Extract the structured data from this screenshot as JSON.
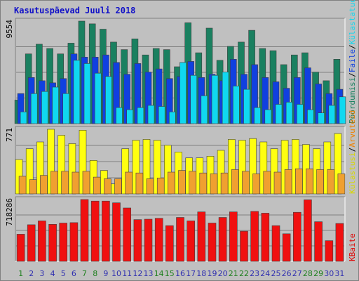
{
  "chart_data": {
    "type": "bar",
    "title": "Kasutuspäevad Juuli 2018",
    "categories": [
      "1",
      "2",
      "3",
      "4",
      "5",
      "6",
      "7",
      "8",
      "9",
      "10",
      "11",
      "12",
      "13",
      "14",
      "15",
      "16",
      "17",
      "18",
      "19",
      "20",
      "21",
      "22",
      "23",
      "24",
      "25",
      "26",
      "27",
      "28",
      "29",
      "30",
      "31"
    ],
    "weekend_days": [
      "1",
      "7",
      "8",
      "14",
      "15",
      "21",
      "22",
      "28",
      "29"
    ],
    "colors": {
      "weekday_tick": "#3030b0",
      "weekend_tick": "#208020",
      "background": "#c0c0c0",
      "frame": "#d0d0d0"
    },
    "panels": [
      {
        "ymax_label": "9554",
        "ymax": 9554,
        "legend": [
          {
            "text": "Pöördumisi",
            "color": "#1a8060"
          },
          {
            "text": "/",
            "color": "#000000"
          },
          {
            "text": "Faile",
            "color": "#1040e0"
          },
          {
            "text": "/",
            "color": "#000000"
          },
          {
            "text": "Külastatud lehti",
            "color": "#10d8f0"
          }
        ],
        "series": [
          {
            "name": "Pöördumisi",
            "color": "#1a8060",
            "values": [
              2200,
              6500,
              7400,
              7000,
              6500,
              7500,
              9554,
              9300,
              8800,
              7600,
              6900,
              7900,
              6400,
              7000,
              6900,
              5300,
              9400,
              6600,
              8900,
              5900,
              7200,
              7600,
              8700,
              7000,
              6800,
              5500,
              6400,
              6600,
              4800,
              4000,
              6000
            ]
          },
          {
            "name": "Faile",
            "color": "#1040e0",
            "values": [
              2800,
              4300,
              4000,
              3800,
              4200,
              6500,
              6200,
              6200,
              6400,
              5700,
              4600,
              5600,
              4800,
              5100,
              4200,
              4400,
              5800,
              4300,
              4600,
              4000,
              6000,
              4600,
              5500,
              4300,
              3900,
              3300,
              4300,
              5200,
              3700,
              2800,
              3200
            ]
          },
          {
            "name": "Külastatud lehti",
            "color": "#10d8f0",
            "values": [
              1100,
              2800,
              3000,
              3400,
              2800,
              5900,
              5600,
              4700,
              4400,
              1500,
              1300,
              1500,
              1700,
              1600,
              1100,
              5700,
              4500,
              2600,
              4500,
              4800,
              3500,
              3200,
              1500,
              1300,
              1800,
              2000,
              1800,
              1300,
              1000,
              1700,
              2500
            ]
          }
        ]
      },
      {
        "ymax_label": "771",
        "ymax": 771,
        "legend": [
          {
            "text": "Külastusi",
            "color": "#d8d800"
          },
          {
            "text": "/",
            "color": "#000000"
          },
          {
            "text": "Arvuteid",
            "color": "#f08000"
          }
        ],
        "series": [
          {
            "name": "Külastusi",
            "color": "#ffff10",
            "values": [
              410,
              540,
              620,
              771,
              700,
              600,
              760,
              400,
              280,
              120,
              540,
              640,
              650,
              640,
              580,
              500,
              430,
              430,
              450,
              520,
              650,
              640,
              660,
              620,
              540,
              640,
              650,
              590,
              540,
              620,
              720
            ]
          },
          {
            "name": "Arvuteid",
            "color": "#f0a030",
            "values": [
              210,
              170,
              220,
              270,
              270,
              260,
              270,
              200,
              180,
              180,
              260,
              250,
              180,
              190,
              260,
              280,
              270,
              250,
              240,
              250,
              290,
              270,
              240,
              270,
              260,
              290,
              300,
              300,
              290,
              290,
              240
            ]
          }
        ]
      },
      {
        "ymax_label": "718286",
        "ymax": 718286,
        "legend": [
          {
            "text": "KBaite",
            "color": "#e00000"
          }
        ],
        "series": [
          {
            "name": "KBaite",
            "color": "#f01010",
            "values": [
              315000,
              425000,
              470000,
              430000,
              445000,
              450000,
              718286,
              700000,
              700000,
              680000,
              620000,
              485000,
              490000,
              500000,
              415000,
              510000,
              470000,
              575000,
              445000,
              510000,
              575000,
              350000,
              580000,
              560000,
              415000,
              320000,
              570000,
              715000,
              460000,
              240000,
              440000
            ]
          }
        ]
      }
    ]
  }
}
